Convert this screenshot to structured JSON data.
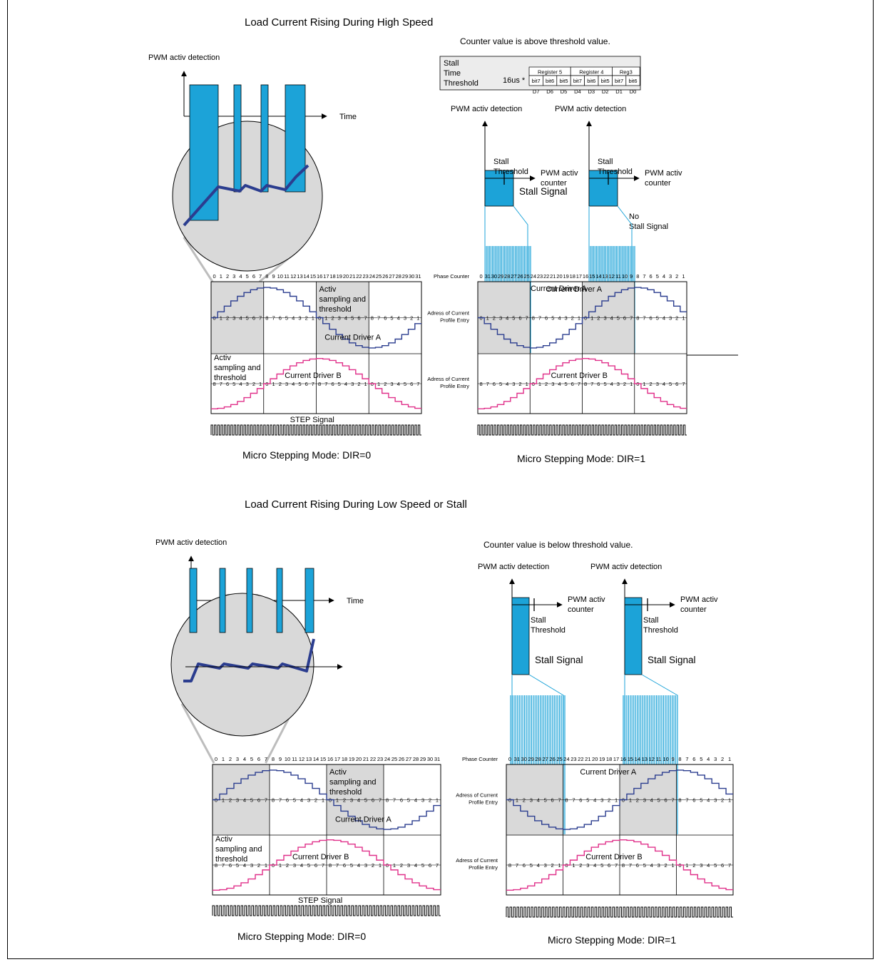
{
  "titles": {
    "high_speed": "Load Current Rising During High Speed",
    "low_speed": "Load Current Rising During Low Speed or Stall"
  },
  "captions": {
    "dir0": "Micro Stepping Mode: DIR=0",
    "dir1": "Micro Stepping Mode: DIR=1"
  },
  "notes": {
    "above": "Counter value is above threshold value.",
    "below": "Counter value is below threshold value."
  },
  "labels": {
    "pwm_detection": "PWM activ detection",
    "time": "Time",
    "stall_threshold_1": "Stall",
    "stall_threshold_2": "Threshold",
    "pwm_counter_1": "PWM activ",
    "pwm_counter_2": "counter",
    "no_stall_1": "No",
    "no_stall_2": "Stall Signal",
    "stall_signal": "Stall Signal",
    "phase_counter": "Phase Counter",
    "adress_1": "Adress of Current",
    "adress_2": "Profile Entry",
    "activ_1": "Activ",
    "activ_2": "sampling and",
    "activ_3": "threshold",
    "current_a": "Current Driver A",
    "current_b": "Current Driver B",
    "step_signal": "STEP Signal"
  },
  "register_table": {
    "row_label_1": "Stall",
    "row_label_2": "Time",
    "row_label_3": "Threshold",
    "factor": "16us *",
    "groups": [
      "Register 5",
      "Register 4",
      "Reg3"
    ],
    "bits": [
      "bit7",
      "bit6",
      "bit5",
      "bit7",
      "bit6",
      "bit5",
      "bit7",
      "bit6"
    ],
    "d_labels": [
      "D7",
      "D6",
      "D5",
      "D4",
      "D3",
      "D2",
      "D1",
      "D0"
    ]
  },
  "sequences": {
    "phase_dir0": "0 1 2 3 4 5 6 7 8 9 10 11 12 13 14 15 16 17 18 19 20 21 22 23 24 25 26 27 28 29 30 31",
    "phase_dir1": "0 31 30 29 28 27 26 25 24 23 22 21 20 19 18 17 16 15 14 13 12 11 10 9 8 7 6 5 4 3 2 1",
    "addr_a_dir0": "0 1 2 3 4 5 6 7 8 7 6 5 4 3 2 1 0 1 2 3 4 5 6 7 8 7 6 5 4 3 2 1",
    "addr_b_dir0": "8 7 6 5 4 3 2 1 0 1 2 3 4 5 6 7 8 7 6 5 4 3 2 1 0 1 2 3 4 5 6 7",
    "addr_a_dir1": "0 1 2 3 4 5 6 7 8 7 6 5 4 3 2 1 0 1 2 3 4 5 6 7 8 7 6 5 4 3 2 1",
    "addr_b_dir1": "8 7 6 5 4 3 2 1 0 1 2 3 4 5 6 7 8 7 6 5 4 3 2 1 0 1 2 3 4 5 6 7"
  },
  "colors": {
    "pwm_fill": "#1ca3d8",
    "current_a": "#2b3d8f",
    "current_b": "#e0308a",
    "shade": "#d9d9d9",
    "zoom_circle": "#d9d9d9",
    "zoom_line": "#bdbdbd"
  }
}
